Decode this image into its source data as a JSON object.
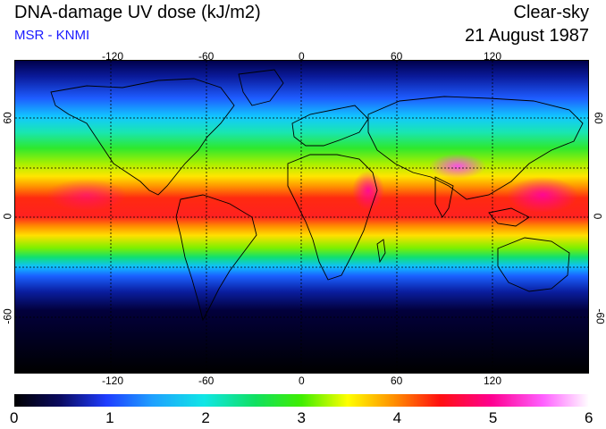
{
  "header": {
    "title": "DNA-damage UV dose (kJ/m2)",
    "subtitle": "MSR - KNMI",
    "mode": "Clear-sky",
    "date": "21 August 1987"
  },
  "map": {
    "lon_ticks": [
      "-120",
      "-60",
      "0",
      "60",
      "120"
    ],
    "lat_ticks": [
      "60",
      "0",
      "-60"
    ],
    "lat_ticks_right": [
      "60",
      "0",
      "-60"
    ]
  },
  "colorbar": {
    "labels": [
      "0",
      "1",
      "2",
      "3",
      "4",
      "5",
      "6"
    ],
    "min": 0,
    "max": 6
  },
  "colors": {
    "accent_subtitle": "#1a1aff"
  }
}
